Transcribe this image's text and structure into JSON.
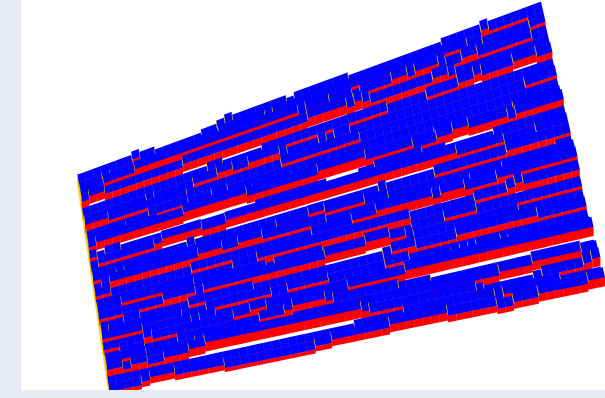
{
  "colors": {
    "background": "#e8ebf4",
    "canvas": "#ffffff",
    "top_face": "#0000ff",
    "front_face": "#ff0000",
    "side_face": "#ffd400"
  },
  "render": {
    "type": "3d-stepped-terrace-rendering",
    "rows": 28,
    "columns": 60,
    "seed": 7
  }
}
